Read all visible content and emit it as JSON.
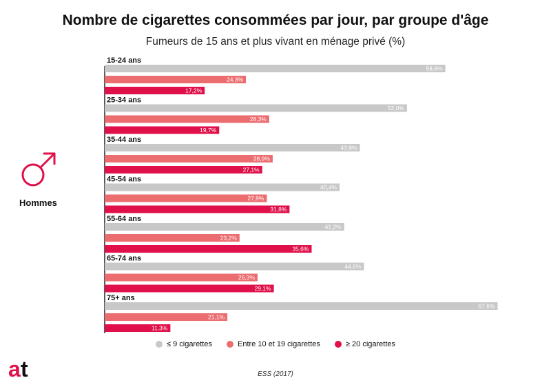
{
  "chart_data": {
    "type": "bar",
    "orientation": "horizontal",
    "title": "Nombre de cigarettes consommées par jour, par groupe d'âge",
    "subtitle": "Fumeurs de 15 ans et plus vivant en ménage privé (%)",
    "group_label": "Hommes",
    "categories": [
      "15-24 ans",
      "25-34 ans",
      "35-44 ans",
      "45-54 ans",
      "55-64 ans",
      "65-74 ans",
      "75+ ans"
    ],
    "series": [
      {
        "name": "≤ 9 cigarettes",
        "color": "#c8c8c8",
        "values": [
          58.6,
          52.0,
          43.9,
          40.4,
          41.2,
          44.6,
          67.6
        ],
        "labels": [
          "58,6%",
          "52,0%",
          "43,9%",
          "40,4%",
          "41,2%",
          "44,6%",
          "67,6%"
        ]
      },
      {
        "name": "Entre 10 et 19 cigarettes",
        "color": "#ec6d70",
        "values": [
          24.3,
          28.3,
          28.9,
          27.9,
          23.2,
          26.3,
          21.1
        ],
        "labels": [
          "24,3%",
          "28,3%",
          "28,9%",
          "27,9%",
          "23,2%",
          "26,3%",
          "21,1%"
        ]
      },
      {
        "name": "≥ 20 cigarettes",
        "color": "#e0104a",
        "values": [
          17.2,
          19.7,
          27.1,
          31.8,
          35.6,
          29.1,
          11.3
        ],
        "labels": [
          "17,2%",
          "19,7%",
          "27,1%",
          "31,8%",
          "35,6%",
          "29,1%",
          "11,3%"
        ]
      }
    ],
    "xlim": [
      0,
      100
    ],
    "grid": false,
    "legend_position": "bottom",
    "source": "ESS (2017)"
  },
  "logo_text": "at",
  "icons": {
    "gender": "male-symbol-icon",
    "logo": "at-logo-icon"
  },
  "colors": {
    "accent": "#e0104a",
    "light": "#ec6d70",
    "grey": "#c8c8c8",
    "axis": "#222222"
  }
}
